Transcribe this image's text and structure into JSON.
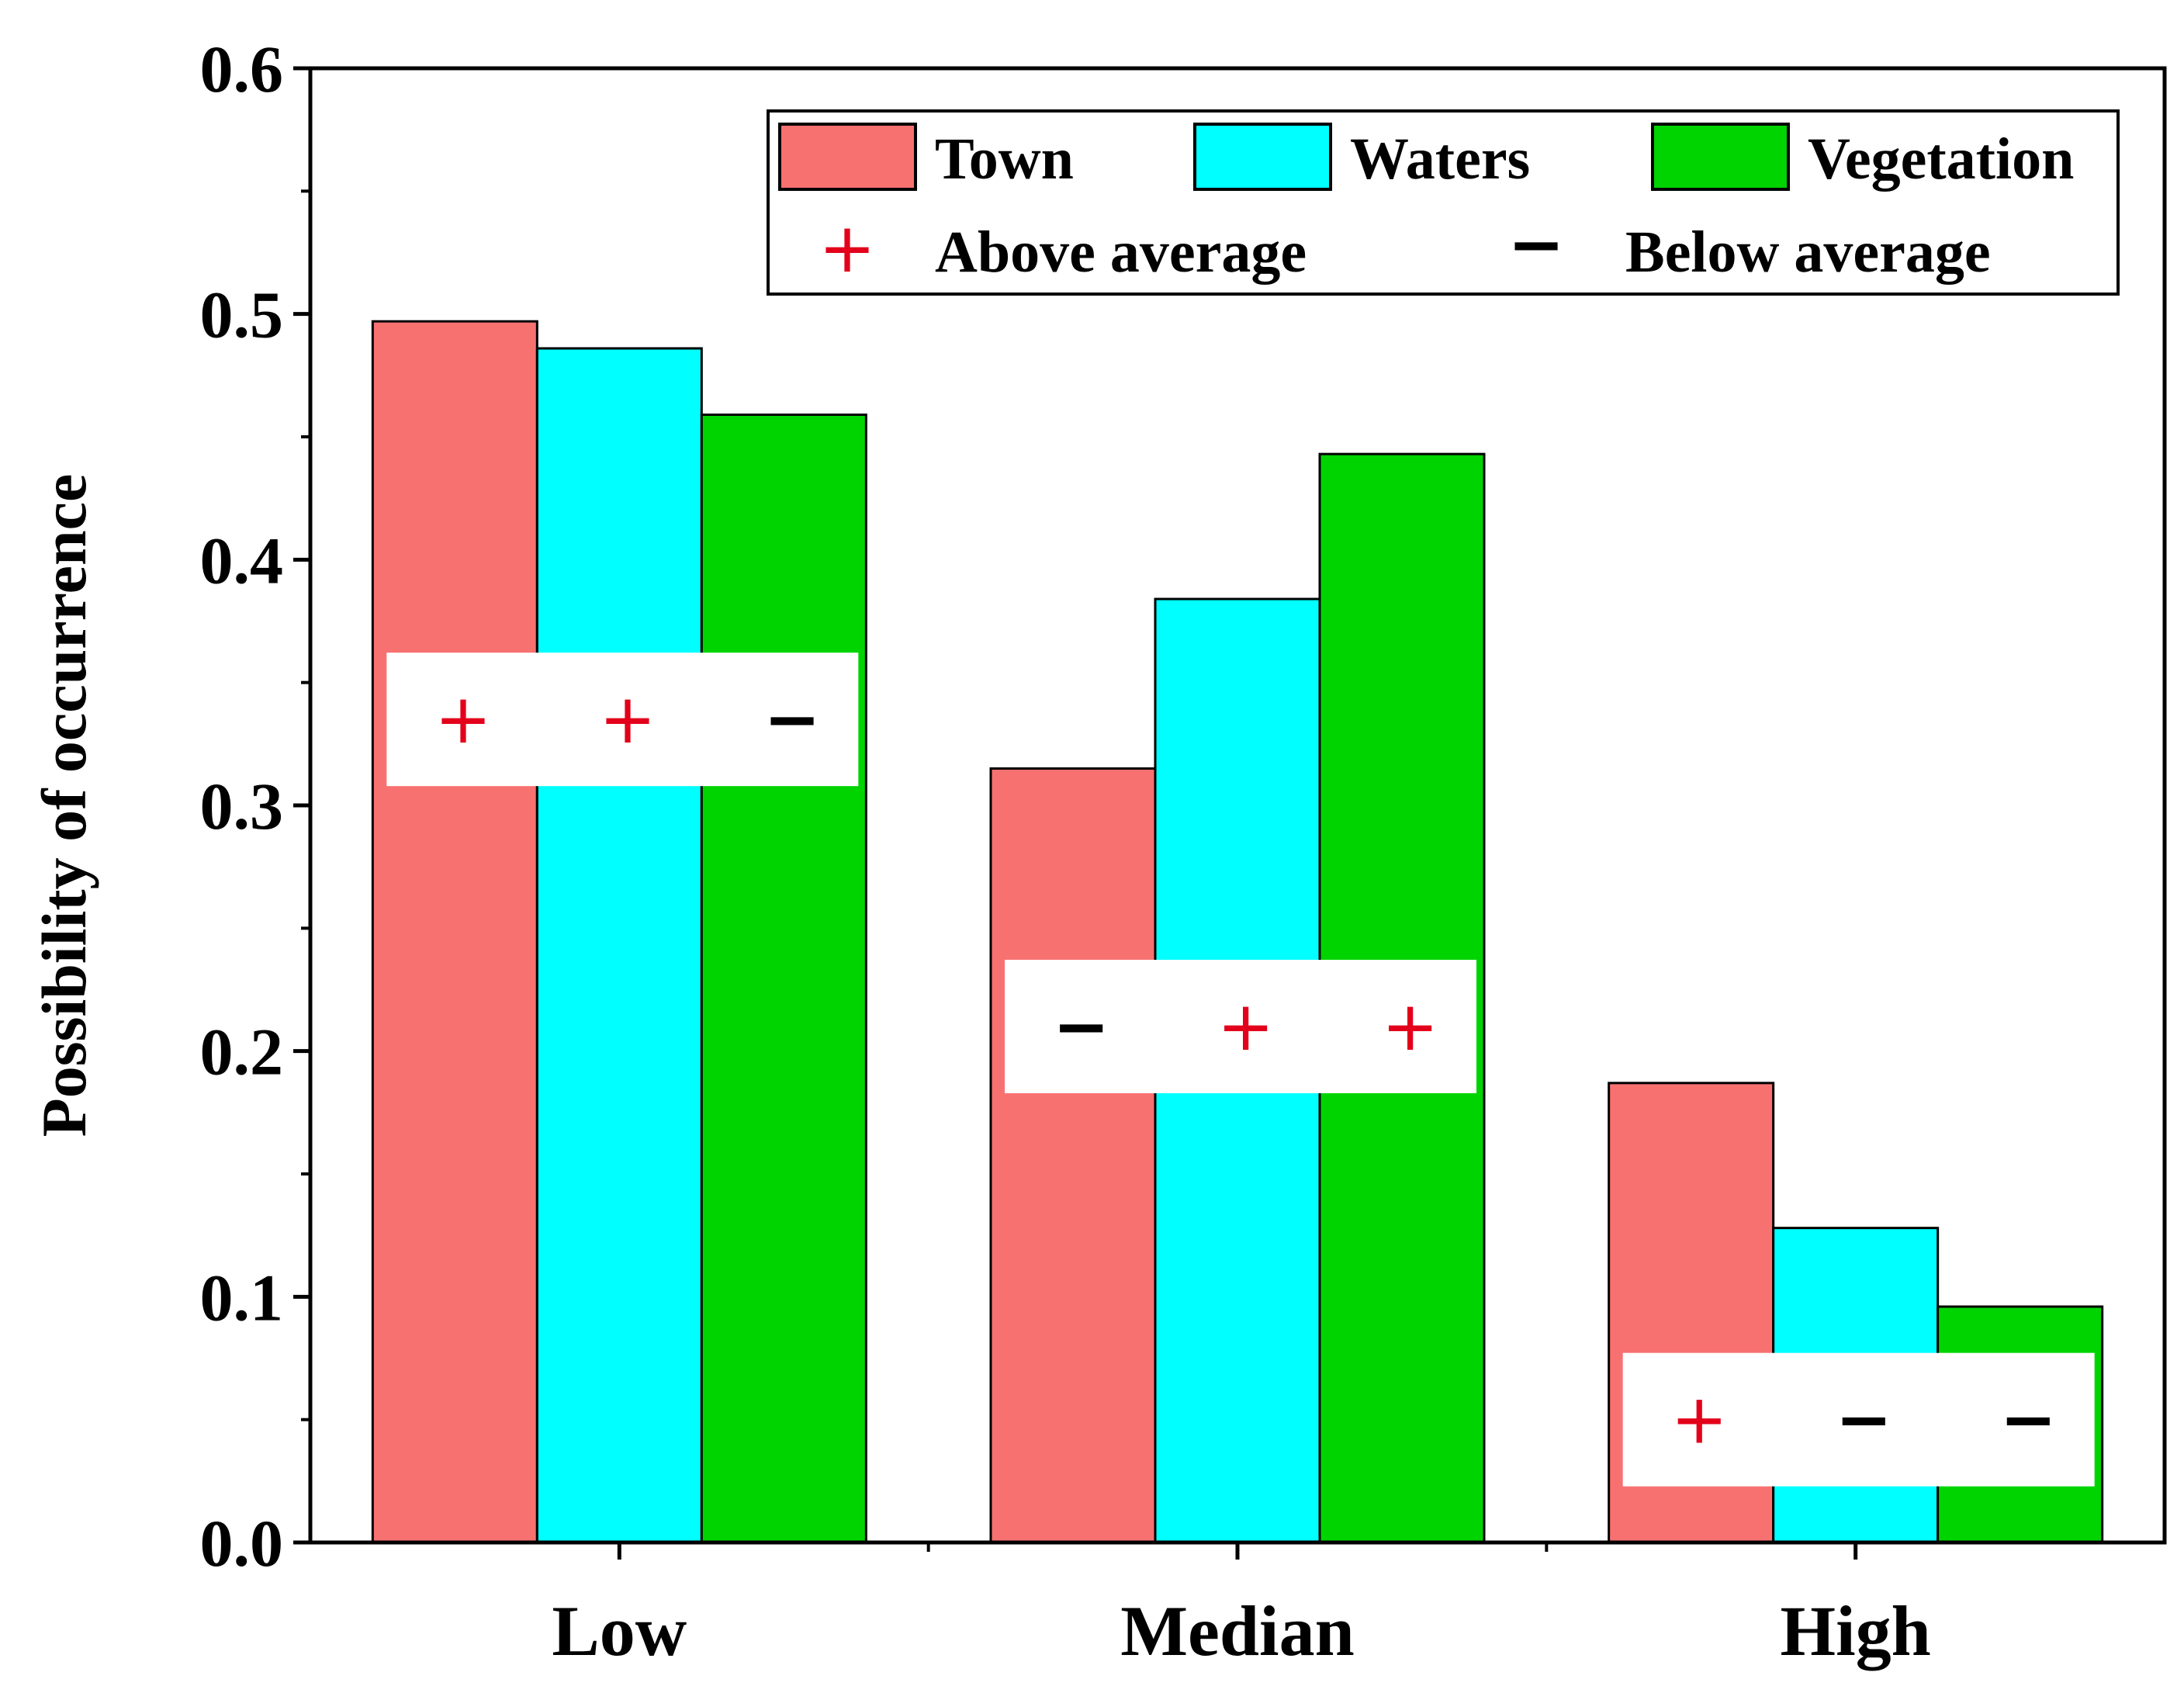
{
  "chart_data": {
    "type": "bar",
    "title": "",
    "xlabel": "",
    "ylabel": "Possibility of occurrence",
    "ylim": [
      0,
      0.6
    ],
    "yticks": [
      "0.0",
      "0.1",
      "0.2",
      "0.3",
      "0.4",
      "0.5",
      "0.6"
    ],
    "grid": false,
    "categories": [
      "Low",
      "Median",
      "High"
    ],
    "series": [
      {
        "name": "Town",
        "color": "#f87171",
        "values": [
          0.497,
          0.315,
          0.187
        ]
      },
      {
        "name": "Waters",
        "color": "#00ffff",
        "values": [
          0.486,
          0.384,
          0.128
        ]
      },
      {
        "name": "Vegetation",
        "color": "#00d400",
        "values": [
          0.459,
          0.443,
          0.096
        ]
      }
    ],
    "annotations": [
      {
        "category": "Low",
        "signs": [
          "+",
          "+",
          "−"
        ]
      },
      {
        "category": "Median",
        "signs": [
          "−",
          "+",
          "+"
        ]
      },
      {
        "category": "High",
        "signs": [
          "+",
          "−",
          "−"
        ]
      }
    ],
    "legend": {
      "position": "top-right",
      "sign_items": [
        {
          "symbol": "+",
          "label": "Above average",
          "color": "#e3001b"
        },
        {
          "symbol": "−",
          "label": "Below average",
          "color": "#000000"
        }
      ]
    }
  }
}
